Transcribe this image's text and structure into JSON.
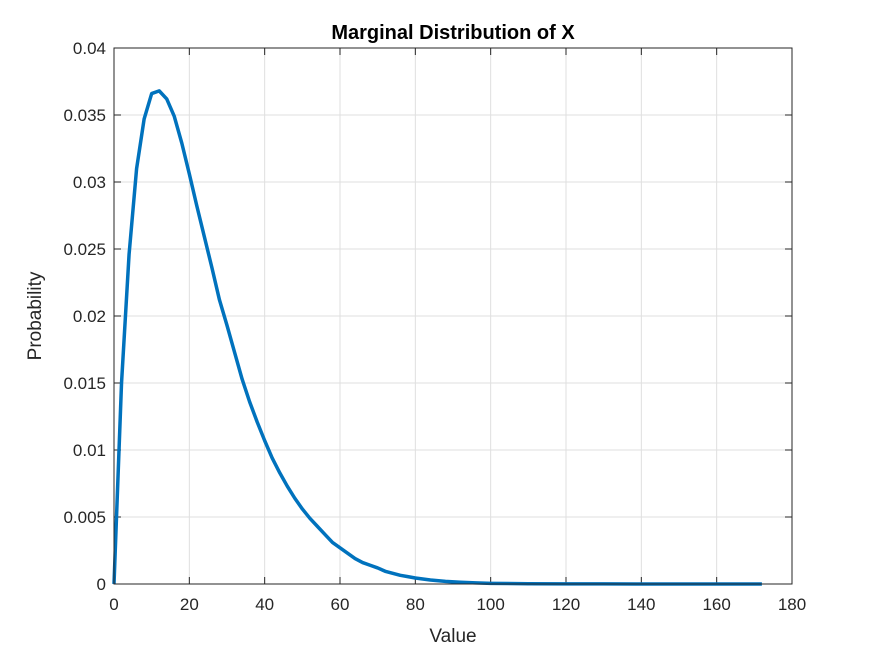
{
  "chart_data": {
    "type": "line",
    "title": "Marginal Distribution of X",
    "xlabel": "Value",
    "ylabel": "Probability",
    "xlim": [
      0,
      180
    ],
    "ylim": [
      0,
      0.04
    ],
    "xticks": [
      0,
      20,
      40,
      60,
      80,
      100,
      120,
      140,
      160,
      180
    ],
    "xtick_labels": [
      "0",
      "20",
      "40",
      "60",
      "80",
      "100",
      "120",
      "140",
      "160",
      "180"
    ],
    "yticks": [
      0,
      0.005,
      0.01,
      0.015,
      0.02,
      0.025,
      0.03,
      0.035,
      0.04
    ],
    "ytick_labels": [
      "0",
      "0.005",
      "0.01",
      "0.015",
      "0.02",
      "0.025",
      "0.03",
      "0.035",
      "0.04"
    ],
    "grid": true,
    "color": "#0072BD",
    "series": [
      {
        "x": [
          0,
          2,
          4,
          6,
          8,
          10,
          12,
          14,
          16,
          18,
          20,
          22,
          24,
          26,
          28,
          30,
          32,
          34,
          36,
          38,
          40,
          42,
          44,
          46,
          48,
          50,
          52,
          54,
          56,
          58,
          60,
          62,
          64,
          66,
          68,
          70,
          72,
          74,
          76,
          78,
          80,
          84,
          88,
          92,
          96,
          100,
          110,
          120,
          130,
          140,
          150,
          160,
          172
        ],
        "values": [
          0,
          0.015,
          0.0246,
          0.031,
          0.0347,
          0.0366,
          0.0368,
          0.0362,
          0.0349,
          0.0329,
          0.0306,
          0.0282,
          0.0259,
          0.0236,
          0.0212,
          0.0193,
          0.0173,
          0.0153,
          0.0136,
          0.0121,
          0.0107,
          0.0094,
          0.0083,
          0.0073,
          0.0064,
          0.0056,
          0.0049,
          0.0043,
          0.0037,
          0.0031,
          0.0027,
          0.0023,
          0.0019,
          0.0016,
          0.0014,
          0.0012,
          0.00095,
          0.0008,
          0.00065,
          0.00055,
          0.00045,
          0.0003,
          0.0002,
          0.00013,
          8e-05,
          5e-05,
          2e-05,
          1e-05,
          5e-06,
          2e-06,
          1e-06,
          5e-07,
          2e-07
        ]
      }
    ]
  }
}
